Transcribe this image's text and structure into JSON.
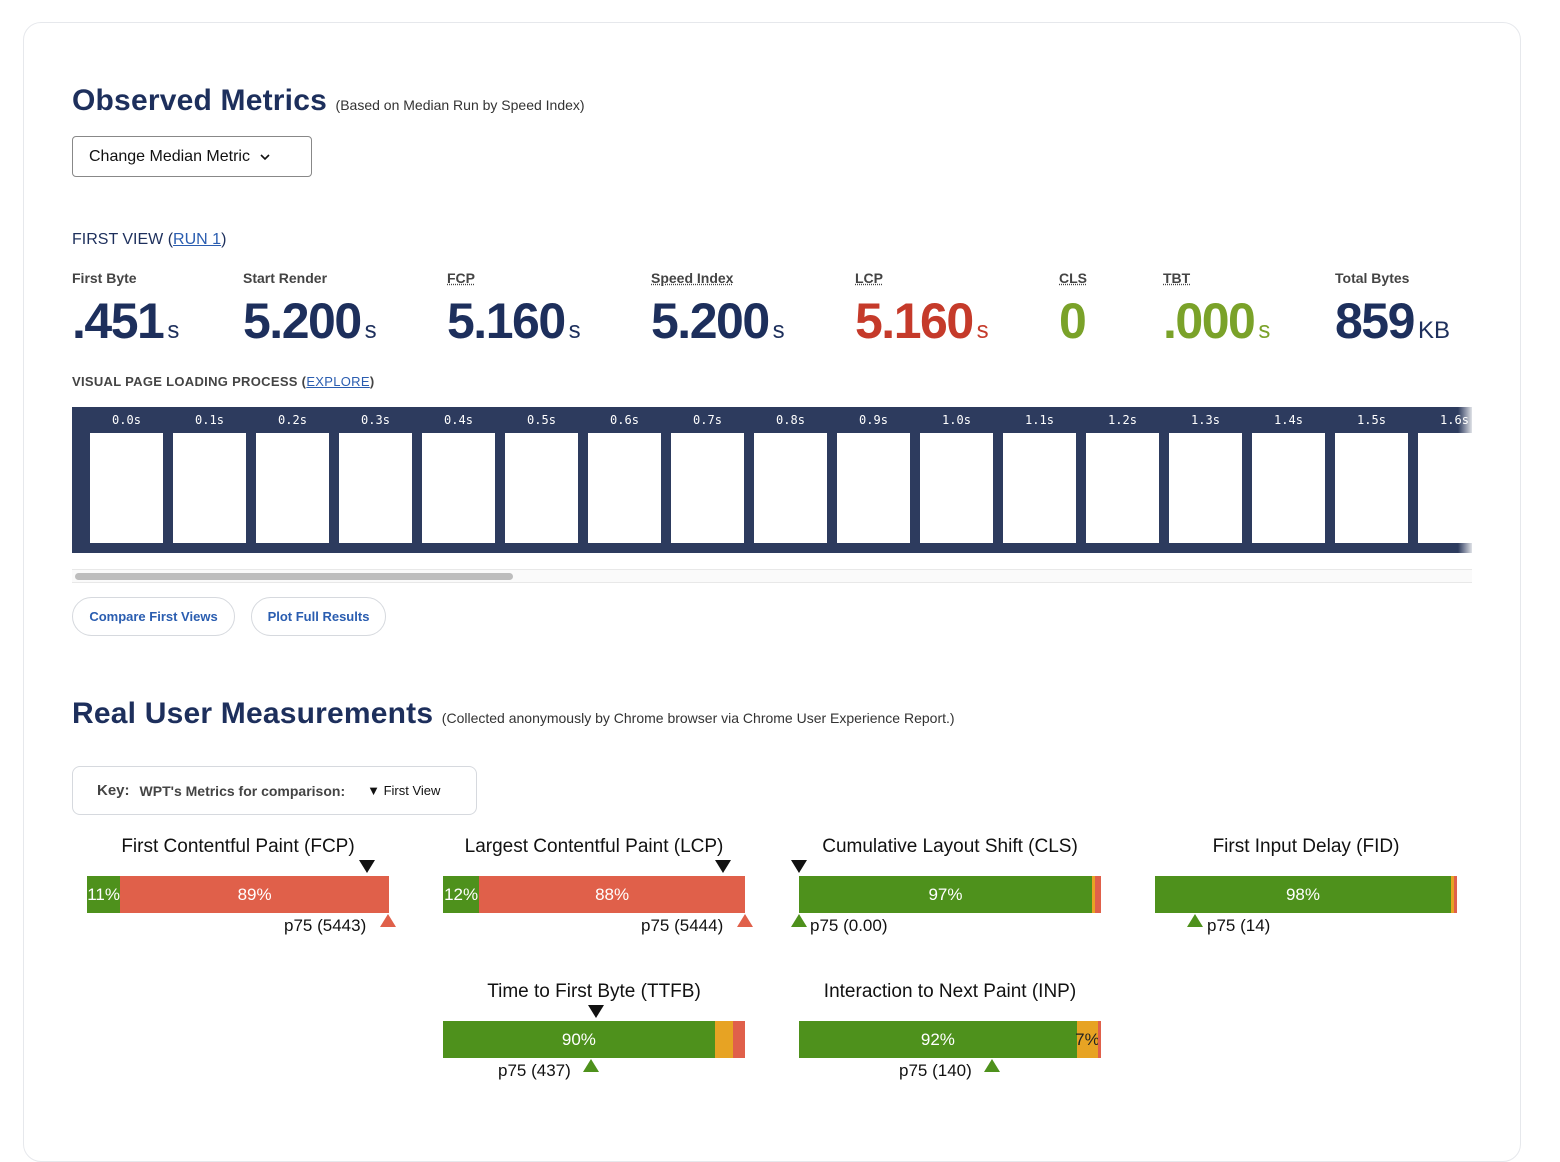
{
  "observed": {
    "title": "Observed Metrics",
    "subtitle": "(Based on Median Run by Speed Index)",
    "dropdown_label": "Change Median Metric",
    "first_view_prefix": "FIRST VIEW (",
    "first_view_link": "RUN 1",
    "first_view_suffix": ")",
    "metrics": [
      {
        "label": "First Byte",
        "value": ".451",
        "unit": "s",
        "color": "#1d2f5c"
      },
      {
        "label": "Start Render",
        "value": "5.200",
        "unit": "s",
        "color": "#1d2f5c"
      },
      {
        "label": "FCP",
        "value": "5.160",
        "unit": "s",
        "color": "#1d2f5c"
      },
      {
        "label": "Speed Index",
        "value": "5.200",
        "unit": "s",
        "color": "#1d2f5c"
      },
      {
        "label": "LCP",
        "value": "5.160",
        "unit": "s",
        "color": "#c53a2a"
      },
      {
        "label": "CLS",
        "value": "0",
        "unit": "",
        "color": "#7aa229"
      },
      {
        "label": "TBT",
        "value": ".000",
        "unit": "s",
        "color": "#7aa229"
      },
      {
        "label": "Total Bytes",
        "value": "859",
        "unit": "KB",
        "color": "#1d2f5c"
      }
    ],
    "visual_label": "VISUAL PAGE LOADING PROCESS",
    "visual_link": "EXPLORE",
    "frames": [
      "0.0s",
      "0.1s",
      "0.2s",
      "0.3s",
      "0.4s",
      "0.5s",
      "0.6s",
      "0.7s",
      "0.8s",
      "0.9s",
      "1.0s",
      "1.1s",
      "1.2s",
      "1.3s",
      "1.4s",
      "1.5s",
      "1.6s"
    ],
    "buttons": {
      "compare": "Compare First Views",
      "plot": "Plot Full Results"
    }
  },
  "rum": {
    "title": "Real User Measurements",
    "subtitle": "(Collected anonymously by Chrome browser via Chrome User Experience Report.)",
    "key_label": "Key:",
    "key_metrics": "WPT's Metrics for comparison:",
    "key_first_view": "▼ First View",
    "cards": [
      {
        "title": "First Contentful Paint (FCP)",
        "good": 11,
        "ni": 0,
        "poor": 89,
        "good_label": "11%",
        "ni_label": "",
        "poor_label": "89%",
        "p75": "p75 (5443)",
        "p75_rating": "poor"
      },
      {
        "title": "Largest Contentful Paint (LCP)",
        "good": 12,
        "ni": 0,
        "poor": 88,
        "good_label": "12%",
        "ni_label": "",
        "poor_label": "88%",
        "p75": "p75 (5444)",
        "p75_rating": "poor"
      },
      {
        "title": "Cumulative Layout Shift (CLS)",
        "good": 97,
        "ni": 1,
        "poor": 2,
        "good_label": "97%",
        "ni_label": "",
        "poor_label": "",
        "p75": "p75 (0.00)",
        "p75_rating": "good"
      },
      {
        "title": "First Input Delay (FID)",
        "good": 98,
        "ni": 1,
        "poor": 1,
        "good_label": "98%",
        "ni_label": "",
        "poor_label": "",
        "p75": "p75 (14)",
        "p75_rating": "good"
      },
      {
        "title": "Time to First Byte (TTFB)",
        "good": 90,
        "ni": 6,
        "poor": 4,
        "good_label": "90%",
        "ni_label": "",
        "poor_label": "",
        "p75": "p75 (437)",
        "p75_rating": "good"
      },
      {
        "title": "Interaction to Next Paint (INP)",
        "good": 92,
        "ni": 7,
        "poor": 1,
        "good_label": "92%",
        "ni_label": "7%",
        "poor_label": "",
        "p75": "p75 (140)",
        "p75_rating": "good"
      }
    ]
  }
}
